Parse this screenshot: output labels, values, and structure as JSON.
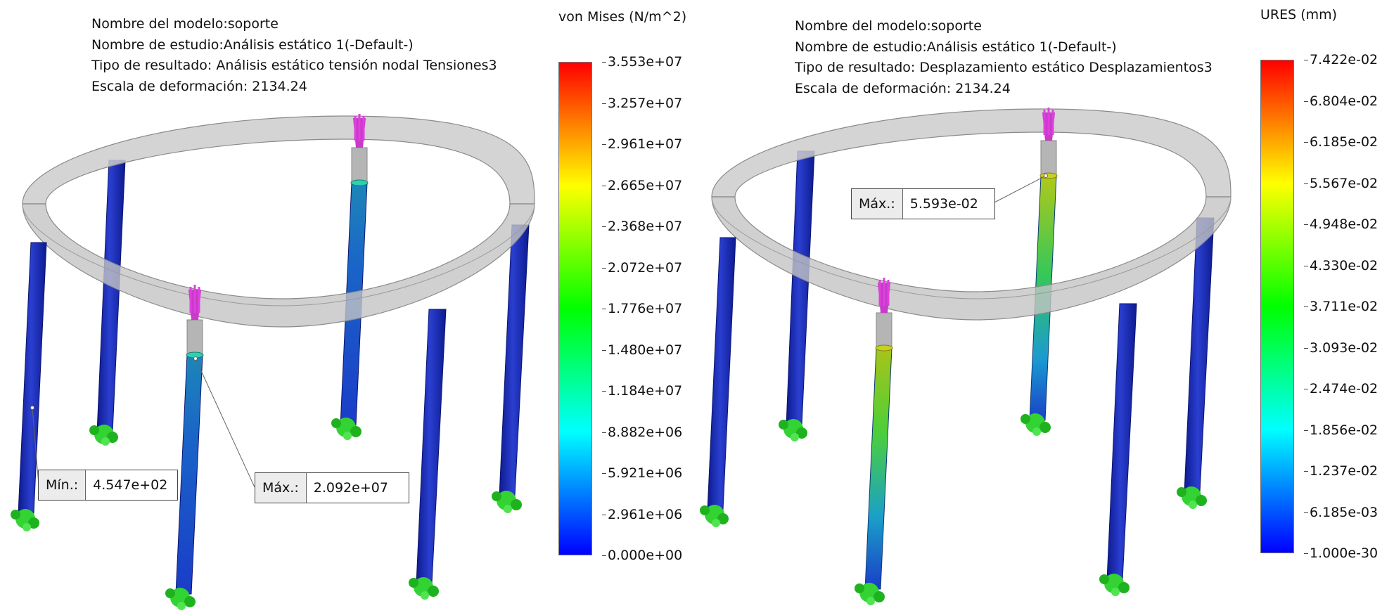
{
  "left": {
    "info": {
      "model_name": "Nombre del modelo:soporte",
      "study_name": "Nombre de estudio:Análisis estático 1(-Default-)",
      "result_type": "Tipo de resultado: Análisis estático tensión nodal Tensiones3",
      "deformation_scale": "Escala de deformación: 2134.24"
    },
    "colorbar": {
      "title": "von Mises (N/m^2)",
      "ticks": [
        "3.553e+07",
        "3.257e+07",
        "2.961e+07",
        "2.665e+07",
        "2.368e+07",
        "2.072e+07",
        "1.776e+07",
        "1.480e+07",
        "1.184e+07",
        "8.882e+06",
        "5.921e+06",
        "2.961e+06",
        "0.000e+00"
      ]
    },
    "callouts": {
      "min": {
        "label": "Mín.:",
        "value": "4.547e+02"
      },
      "max": {
        "label": "Máx.:",
        "value": "2.092e+07"
      }
    }
  },
  "right": {
    "info": {
      "model_name": "Nombre del modelo:soporte",
      "study_name": "Nombre de estudio:Análisis estático 1(-Default-)",
      "result_type": "Tipo de resultado: Desplazamiento estático Desplazamientos3",
      "deformation_scale": "Escala de deformación: 2134.24"
    },
    "colorbar": {
      "title": "URES (mm)",
      "ticks": [
        "7.422e-02",
        "6.804e-02",
        "6.185e-02",
        "5.567e-02",
        "4.948e-02",
        "4.330e-02",
        "3.711e-02",
        "3.093e-02",
        "2.474e-02",
        "1.856e-02",
        "1.237e-02",
        "6.185e-03",
        "1.000e-30"
      ]
    },
    "callouts": {
      "max": {
        "label": "Máx.:",
        "value": "5.593e-02"
      }
    }
  },
  "colors": {
    "ring_fill": "#cdcdcd",
    "ring_edge": "#8a8a8a",
    "column_blue": "#1b2bb5",
    "fixture_green": "#32d332",
    "load_magenta": "#e040e0",
    "colormap": [
      "#0000ff",
      "#00ffff",
      "#00ff00",
      "#ffff00",
      "#ff0000"
    ]
  },
  "icons": {
    "fixture": "fixed-geometry-icon",
    "load": "force-arrow-icon"
  }
}
